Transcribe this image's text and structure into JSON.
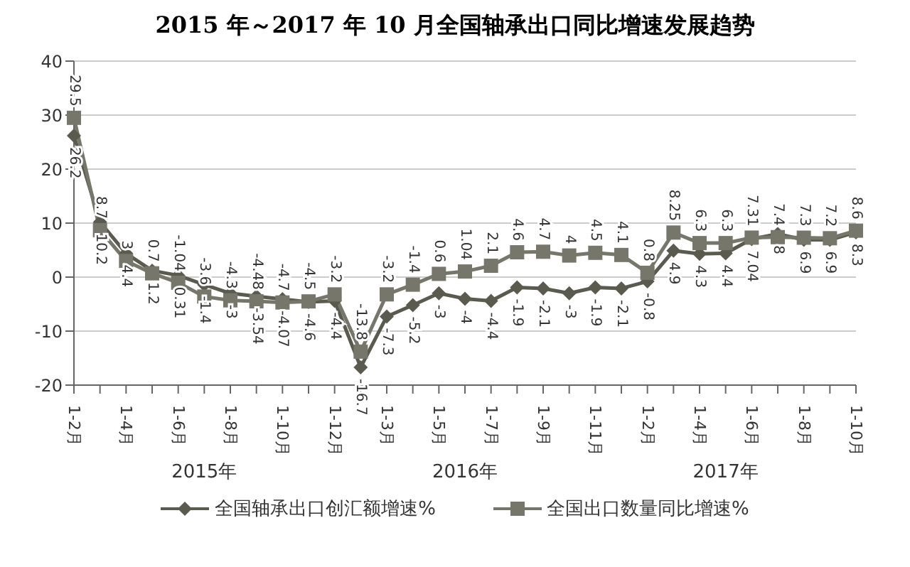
{
  "chart_data": {
    "type": "line",
    "title": "2015 年～2017 年 10 月全国轴承出口同比增速发展趋势",
    "categories": [
      "1-2月",
      null,
      "1-4月",
      null,
      "1-6月",
      null,
      "1-8月",
      null,
      "1-10月",
      null,
      "1-12月",
      null,
      "1-3月",
      null,
      "1-5月",
      null,
      "1-7月",
      null,
      "1-9月",
      null,
      "1-11月",
      null,
      "1-2月",
      null,
      "1-4月",
      null,
      "1-6月",
      null,
      "1-8月",
      null,
      "1-10月"
    ],
    "series": [
      {
        "name": "全国轴承出口创汇额增速%",
        "color": "#5a5a4e",
        "marker": "diamond",
        "values": [
          26.2,
          10.2,
          4.4,
          1.2,
          0.31,
          -1.4,
          -3,
          -3.54,
          -4.07,
          -4.6,
          -4.4,
          -16.7,
          -7.3,
          -5.2,
          -3,
          -4,
          -4.4,
          -1.9,
          -2.1,
          -3,
          -1.9,
          -2.1,
          -0.8,
          4.9,
          4.3,
          4.4,
          7.04,
          8,
          6.9,
          6.9,
          8.3
        ]
      },
      {
        "name": "全国出口数量同比增速%",
        "color": "#76766a",
        "marker": "square",
        "values": [
          29.5,
          8.7,
          3,
          0.7,
          -1.04,
          -3.6,
          -4.3,
          -4.48,
          -4.7,
          -4.5,
          -3.2,
          -13.8,
          -3.2,
          -1.4,
          0.6,
          1.04,
          2.1,
          4.6,
          4.7,
          4,
          4.5,
          4.1,
          0.8,
          8.25,
          6.3,
          6.3,
          7.31,
          7.4,
          7.3,
          7.2,
          8.6
        ]
      }
    ],
    "ylim": [
      -20,
      40
    ],
    "yticks": [
      -20,
      -10,
      0,
      10,
      20,
      30,
      40
    ],
    "grid": "y",
    "legend": "bottom",
    "data_labels": true,
    "annotations": [
      "2015年",
      "2016年",
      "2017年"
    ]
  }
}
